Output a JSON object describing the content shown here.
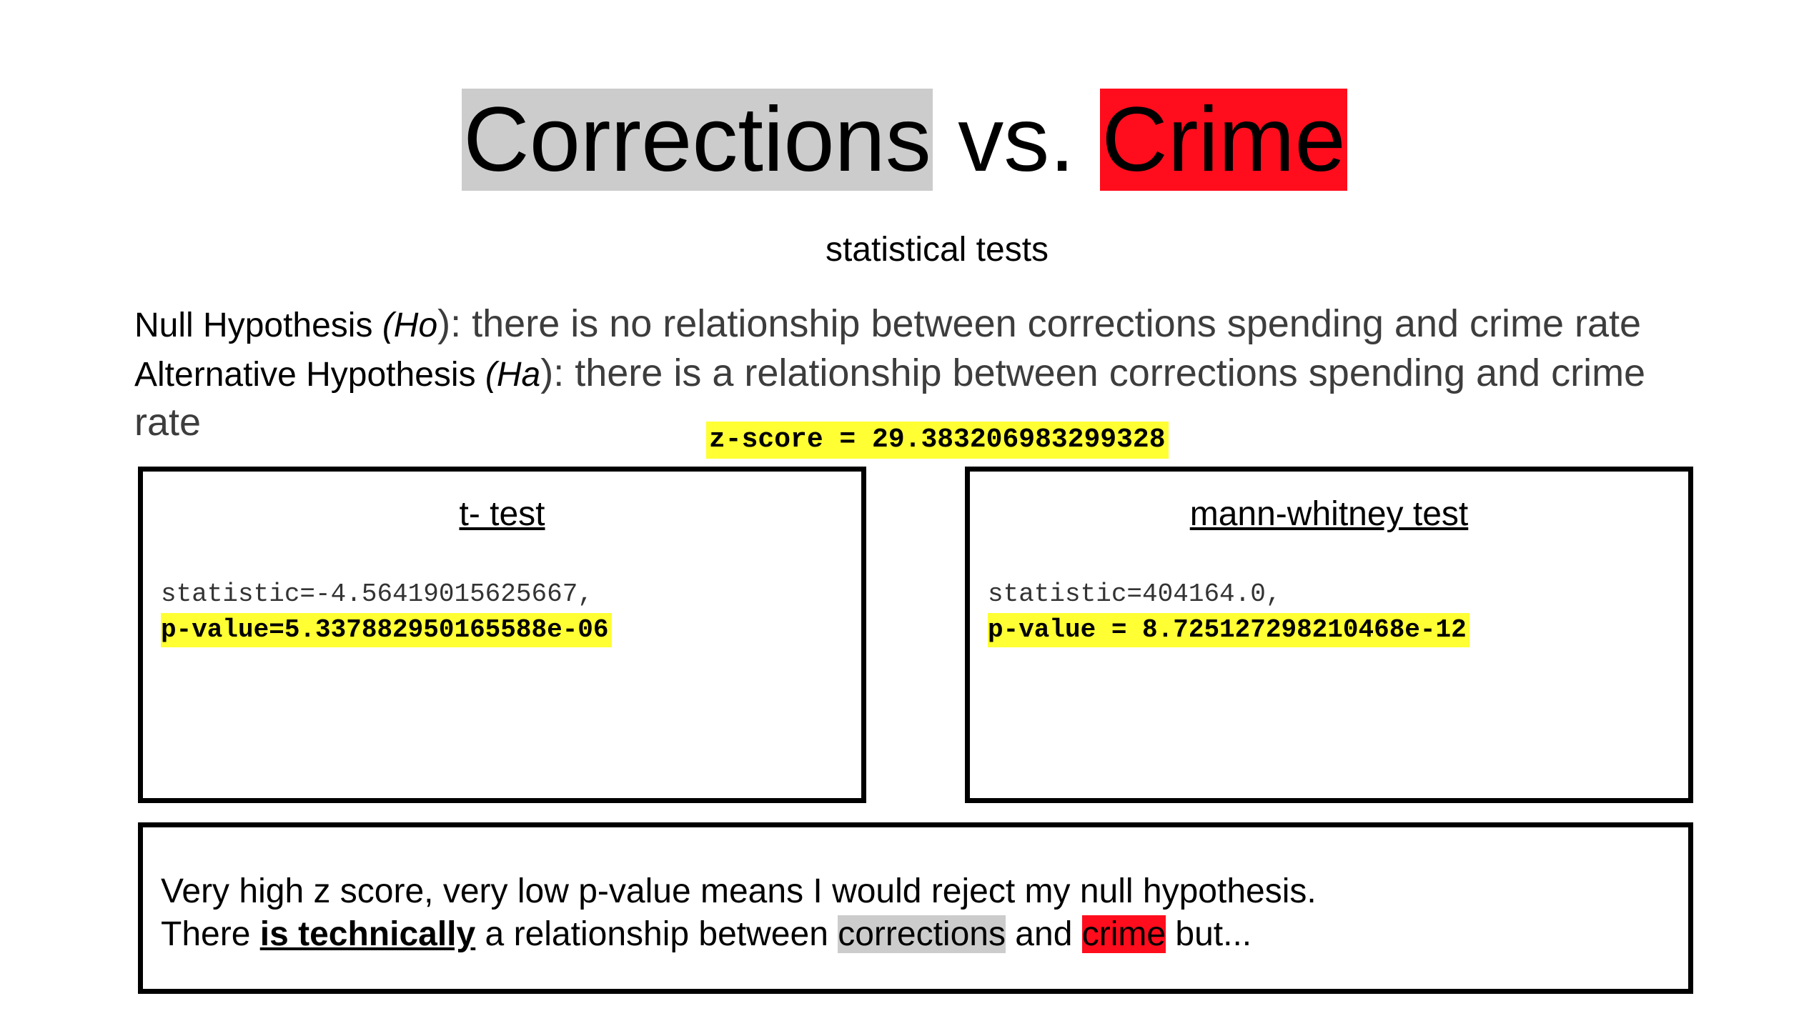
{
  "title": {
    "part1": "Corrections",
    "middle": " vs. ",
    "part2": "Crime"
  },
  "subtitle": "statistical tests",
  "hypotheses": {
    "null_label": "Null Hypothesis ",
    "null_abbr": "(Ho",
    "null_text": "): there is no relationship between corrections spending and crime rate",
    "alt_label": "Alternative Hypothesis ",
    "alt_abbr": "(Ha",
    "alt_text": "): there is a relationship between corrections spending and crime rate"
  },
  "zscore": "z-score = 29.383206983299328",
  "t_test": {
    "heading": "t- test",
    "statistic": "statistic=-4.56419015625667,",
    "p_value": "p-value=5.337882950165588e-06"
  },
  "mann_whitney": {
    "heading": "mann-whitney test",
    "statistic": "statistic=404164.0,",
    "p_value": "p-value = 8.725127298210468e-12"
  },
  "conclusion": {
    "line1": "Very high z score, very low p-value means I would reject my null hypothesis.",
    "line2_prefix": "There ",
    "line2_emphasis": "is technically",
    "line2_mid": " a relationship between ",
    "line2_word1": "corrections",
    "line2_and": " and ",
    "line2_word2": "crime",
    "line2_suffix": " but..."
  },
  "colors": {
    "highlight_gray": "#cccccc",
    "highlight_red": "#ff0d1d",
    "highlight_yellow": "#ffff33"
  }
}
